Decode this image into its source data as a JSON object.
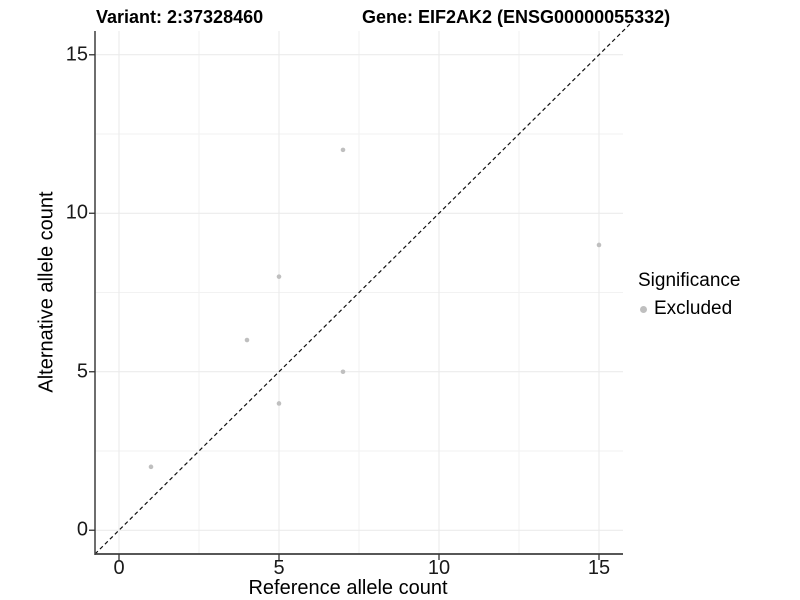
{
  "chart_data": {
    "type": "scatter",
    "title_left": "Variant: 2:37328460",
    "title_right": "Gene: EIF2AK2 (ENSG00000055332)",
    "xlabel": "Reference allele count",
    "ylabel": "Alternative allele count",
    "xlim": [
      -0.75,
      15.75
    ],
    "ylim": [
      -0.75,
      15.75
    ],
    "x_ticks": [
      0,
      5,
      10,
      15
    ],
    "y_ticks": [
      0,
      5,
      10,
      15
    ],
    "minor_ticks": [
      2.5,
      7.5,
      12.5
    ],
    "grid": true,
    "legend_position": "right",
    "series": [
      {
        "name": "Excluded",
        "color": "#bfbfbf",
        "points": [
          [
            1,
            2
          ],
          [
            4,
            6
          ],
          [
            5,
            4
          ],
          [
            5,
            8
          ],
          [
            7,
            5
          ],
          [
            7,
            12
          ],
          [
            15,
            9
          ]
        ]
      }
    ],
    "reference_line": {
      "equation": "y = x",
      "style": "dashed",
      "color": "#111111"
    }
  },
  "legend": {
    "title": "Significance",
    "items": [
      {
        "label": "Excluded",
        "color": "#bfbfbf"
      }
    ]
  },
  "colors": {
    "grid_major": "#e9e9e9",
    "grid_minor": "#f2f2f2",
    "axis_line": "#3f3f3f",
    "tick_mark": "#333333",
    "point": "#bfbfbf",
    "reference_line": "#111111",
    "text": "#000000"
  }
}
